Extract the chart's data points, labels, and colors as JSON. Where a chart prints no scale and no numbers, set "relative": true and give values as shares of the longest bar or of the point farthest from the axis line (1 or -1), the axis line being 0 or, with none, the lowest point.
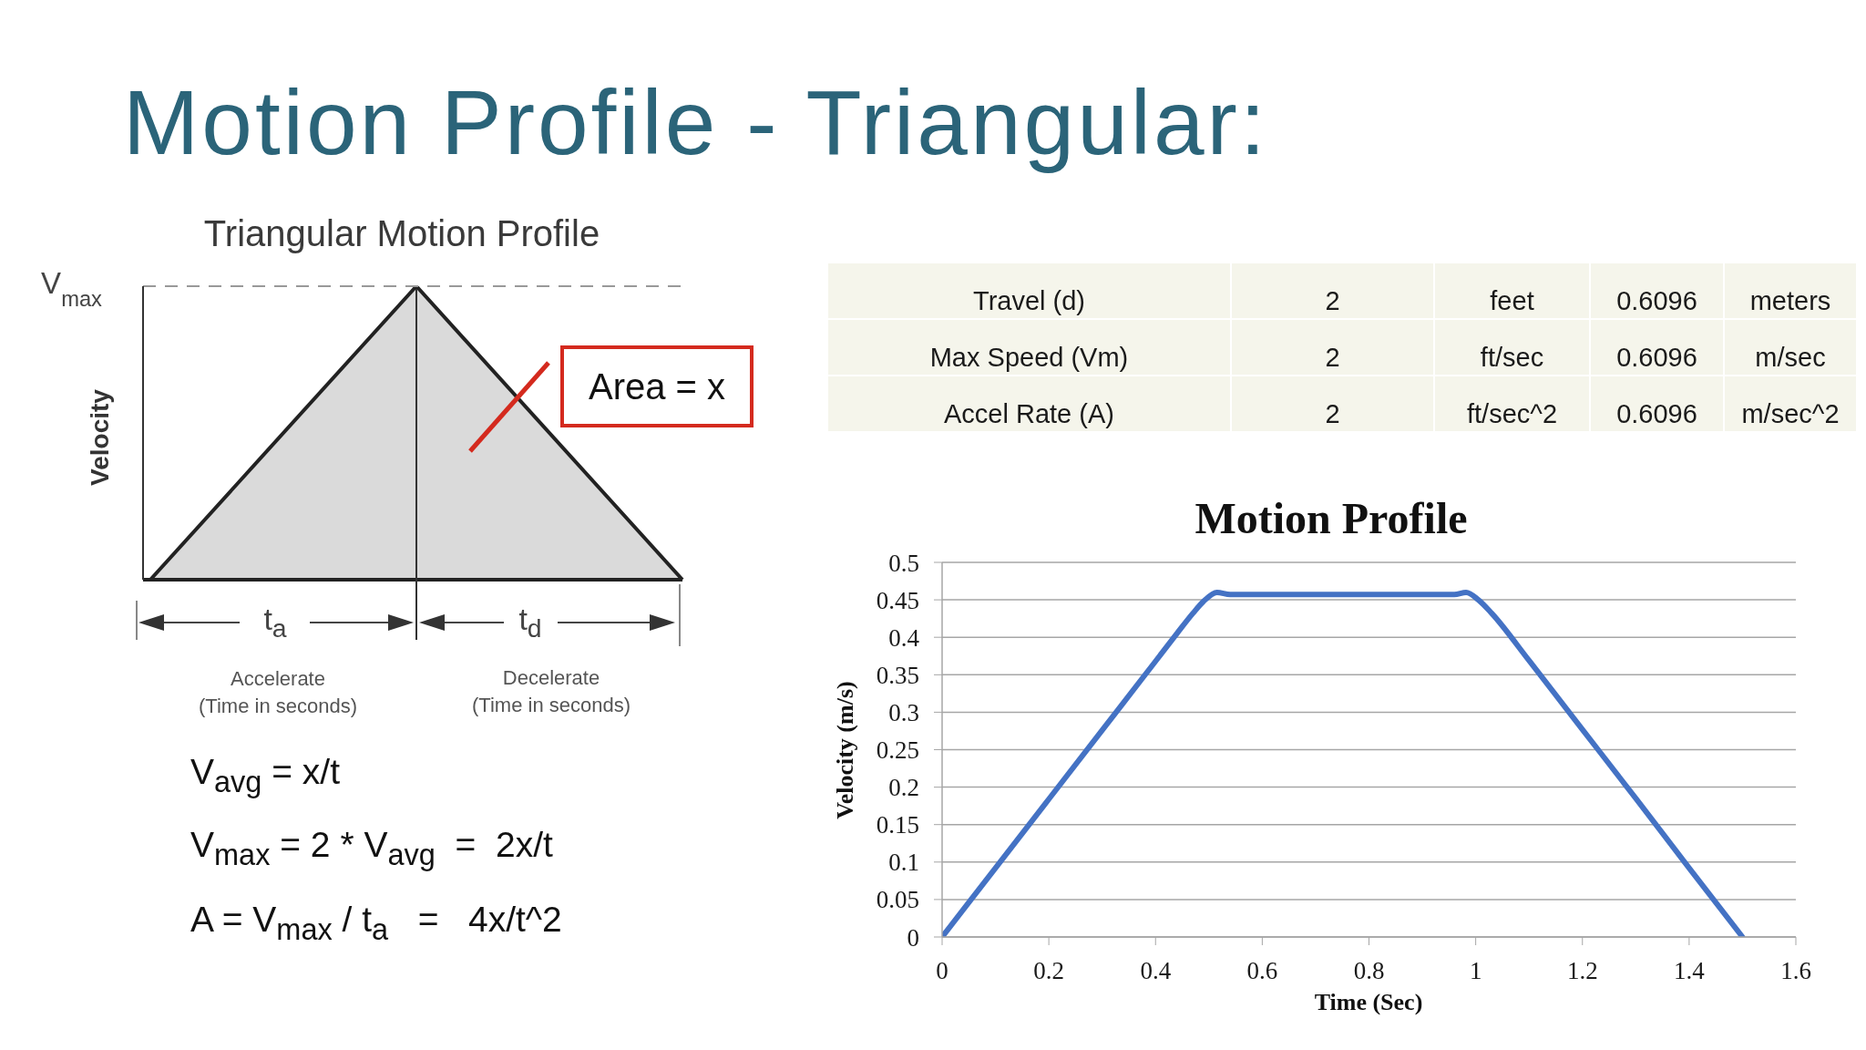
{
  "chart_data": [
    {
      "type": "other",
      "title": "Motion Profile - Triangular:"
    },
    {
      "type": "area",
      "title": "Triangular Motion Profile",
      "ylabel": "Velocity",
      "categories": [
        null,
        null,
        null
      ],
      "values": [
        0,
        1,
        0
      ],
      "color": "#dadada",
      "relative": true,
      "ref_lines": [
        {
          "axis": "y",
          "value": 1,
          "label": "V$_{max}$",
          "line_style": "dashed",
          "color": "#999999"
        }
      ],
      "annotations": [
        "t$_{a}$",
        "t$_{d}$",
        "Accelerate\n(Time in seconds)",
        "Decelerate\n(Time in seconds)",
        "Area = x",
        "V$_{avg}$ = x/t",
        "V$_{max}$ = 2 * V$_{avg}$  =  2x/t",
        "A = V$_{max}$ / t$_{a}$   =   4x/t^2"
      ]
    },
    {
      "type": "other",
      "annotations": [
        "Travel (d)",
        "2",
        "feet",
        "0.6096",
        "meters",
        "Max Speed (Vm)",
        "2",
        "ft/sec",
        "0.6096",
        "m/sec",
        "Accel Rate (A)",
        "2",
        "ft/sec^2",
        "0.6096",
        "m/sec^2"
      ]
    },
    {
      "type": "line",
      "title": "Motion Profile",
      "xlabel": "Time (Sec)",
      "ylabel": "Velocity (m/s)",
      "x": [
        0,
        0.1,
        0.2,
        0.3,
        0.4,
        0.44,
        0.47,
        0.49,
        0.515,
        0.54,
        0.96,
        0.982,
        1.005,
        1.03,
        1.1,
        1.2,
        1.3,
        1.4,
        1.5
      ],
      "values": [
        0,
        0.092,
        0.184,
        0.276,
        0.368,
        0.405,
        0.432,
        0.448,
        0.46,
        0.457,
        0.457,
        0.46,
        0.45,
        0.432,
        0.369,
        0.277,
        0.185,
        0.092,
        0
      ],
      "color": "#4472c4",
      "xlim": [
        0,
        1.6
      ],
      "xticks": [
        0,
        0.2,
        0.4,
        0.6,
        0.8,
        1,
        1.2,
        1.4,
        1.6
      ],
      "ylim": [
        0,
        0.5
      ],
      "yticks": [
        0,
        0.05,
        0.1,
        0.15,
        0.2,
        0.25,
        0.3,
        0.35,
        0.4,
        0.45,
        0.5
      ],
      "grid": "y",
      "marker": "none"
    }
  ]
}
